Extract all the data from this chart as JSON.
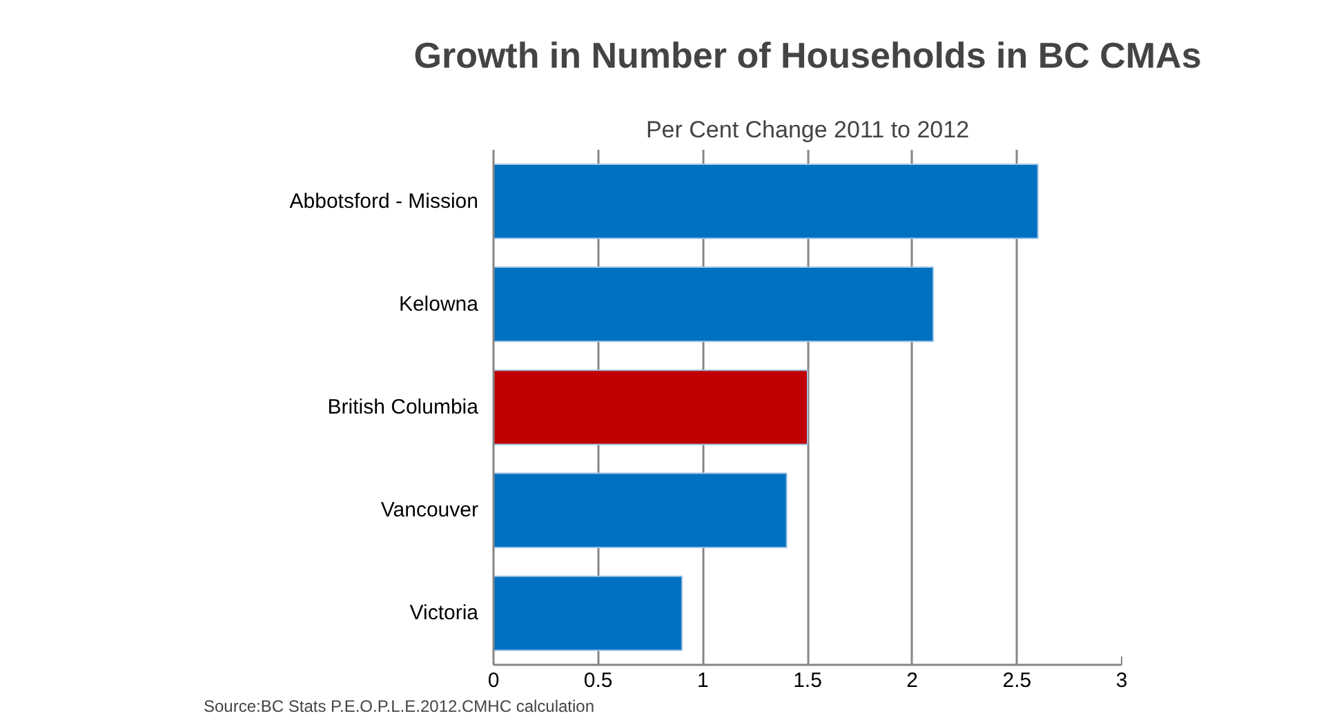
{
  "chart_data": {
    "type": "bar",
    "orientation": "horizontal",
    "title": "Growth in Number of Households in BC CMAs",
    "subtitle": "Per Cent Change 2011 to 2012",
    "categories": [
      "Abbotsford - Mission",
      "Kelowna",
      "British Columbia",
      "Vancouver",
      "Victoria"
    ],
    "values": [
      2.6,
      2.1,
      1.5,
      1.4,
      0.9
    ],
    "colors": [
      "#0070c0",
      "#0070c0",
      "#c00000",
      "#0070c0",
      "#0070c0"
    ],
    "xlim": [
      0,
      3
    ],
    "xticks": [
      0,
      0.5,
      1,
      1.5,
      2,
      2.5,
      3
    ],
    "grid": "x",
    "annotations": [
      "Source:BC Stats P.E.O.P.L.E.2012.CMHC calculation"
    ]
  }
}
